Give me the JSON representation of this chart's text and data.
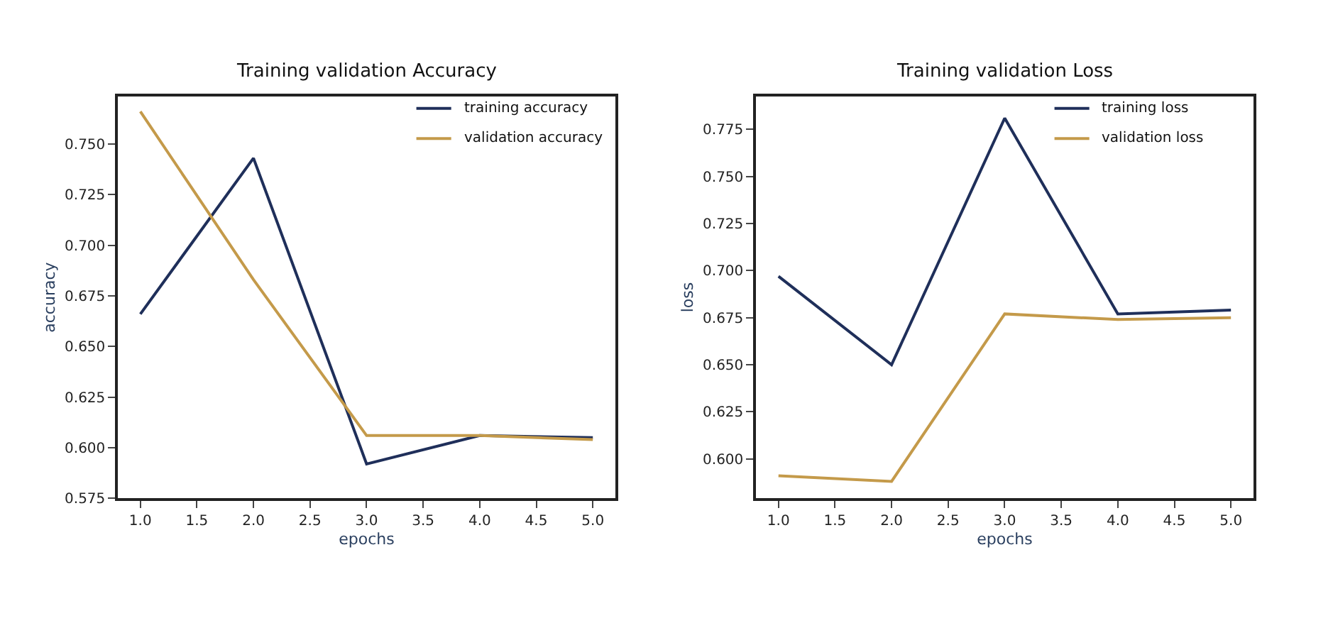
{
  "chart_data": [
    {
      "type": "line",
      "title": "Training validation Accuracy",
      "xlabel": "epochs",
      "ylabel": "accuracy",
      "x": [
        1,
        2,
        3,
        4,
        5
      ],
      "series": [
        {
          "name": "training accuracy",
          "color": "#1f2f5a",
          "values": [
            0.666,
            0.743,
            0.592,
            0.606,
            0.605
          ]
        },
        {
          "name": "validation accuracy",
          "color": "#c49a4a",
          "values": [
            0.766,
            0.683,
            0.606,
            0.606,
            0.604
          ]
        }
      ],
      "xlim": [
        0.8,
        5.2
      ],
      "xticks": [
        {
          "value": 1,
          "label": "1.0"
        },
        1.5,
        {
          "value": 2,
          "label": "2.0"
        },
        2.5,
        {
          "value": 3,
          "label": "3.0"
        },
        3.5,
        {
          "value": 4,
          "label": "4.0"
        },
        4.5,
        {
          "value": 5,
          "label": "5.0"
        }
      ],
      "ylim": [
        0.575,
        0.7735
      ],
      "yticks": [
        {
          "value": 0.575,
          "label": "0.575"
        },
        {
          "value": 0.6,
          "label": "0.600"
        },
        {
          "value": 0.625,
          "label": "0.625"
        },
        {
          "value": 0.65,
          "label": "0.650"
        },
        {
          "value": 0.675,
          "label": "0.675"
        },
        {
          "value": 0.7,
          "label": "0.700"
        },
        {
          "value": 0.725,
          "label": "0.725"
        },
        {
          "value": 0.75,
          "label": "0.750"
        }
      ],
      "grid": false,
      "legend": "top right",
      "marker": "none",
      "line_style": "solid"
    },
    {
      "type": "line",
      "title": "Training validation Loss",
      "xlabel": "epochs",
      "ylabel": "loss",
      "x": [
        1,
        2,
        3,
        4,
        5
      ],
      "series": [
        {
          "name": "training loss",
          "color": "#1f2f5a",
          "values": [
            0.697,
            0.65,
            0.781,
            0.677,
            0.679
          ]
        },
        {
          "name": "validation loss",
          "color": "#c49a4a",
          "values": [
            0.591,
            0.588,
            0.677,
            0.674,
            0.675
          ]
        }
      ],
      "xlim": [
        0.8,
        5.2
      ],
      "xticks": [
        {
          "value": 1,
          "label": "1.0"
        },
        1.5,
        {
          "value": 2,
          "label": "2.0"
        },
        2.5,
        {
          "value": 3,
          "label": "3.0"
        },
        3.5,
        {
          "value": 4,
          "label": "4.0"
        },
        4.5,
        {
          "value": 5,
          "label": "5.0"
        }
      ],
      "ylim": [
        0.579,
        0.7926
      ],
      "yticks": [
        {
          "value": 0.6,
          "label": "0.600"
        },
        {
          "value": 0.625,
          "label": "0.625"
        },
        {
          "value": 0.65,
          "label": "0.650"
        },
        {
          "value": 0.675,
          "label": "0.675"
        },
        {
          "value": 0.7,
          "label": "0.700"
        },
        {
          "value": 0.725,
          "label": "0.725"
        },
        {
          "value": 0.75,
          "label": "0.750"
        },
        {
          "value": 0.775,
          "label": "0.775"
        }
      ],
      "grid": false,
      "legend": "top right",
      "marker": "none",
      "line_style": "solid"
    }
  ]
}
